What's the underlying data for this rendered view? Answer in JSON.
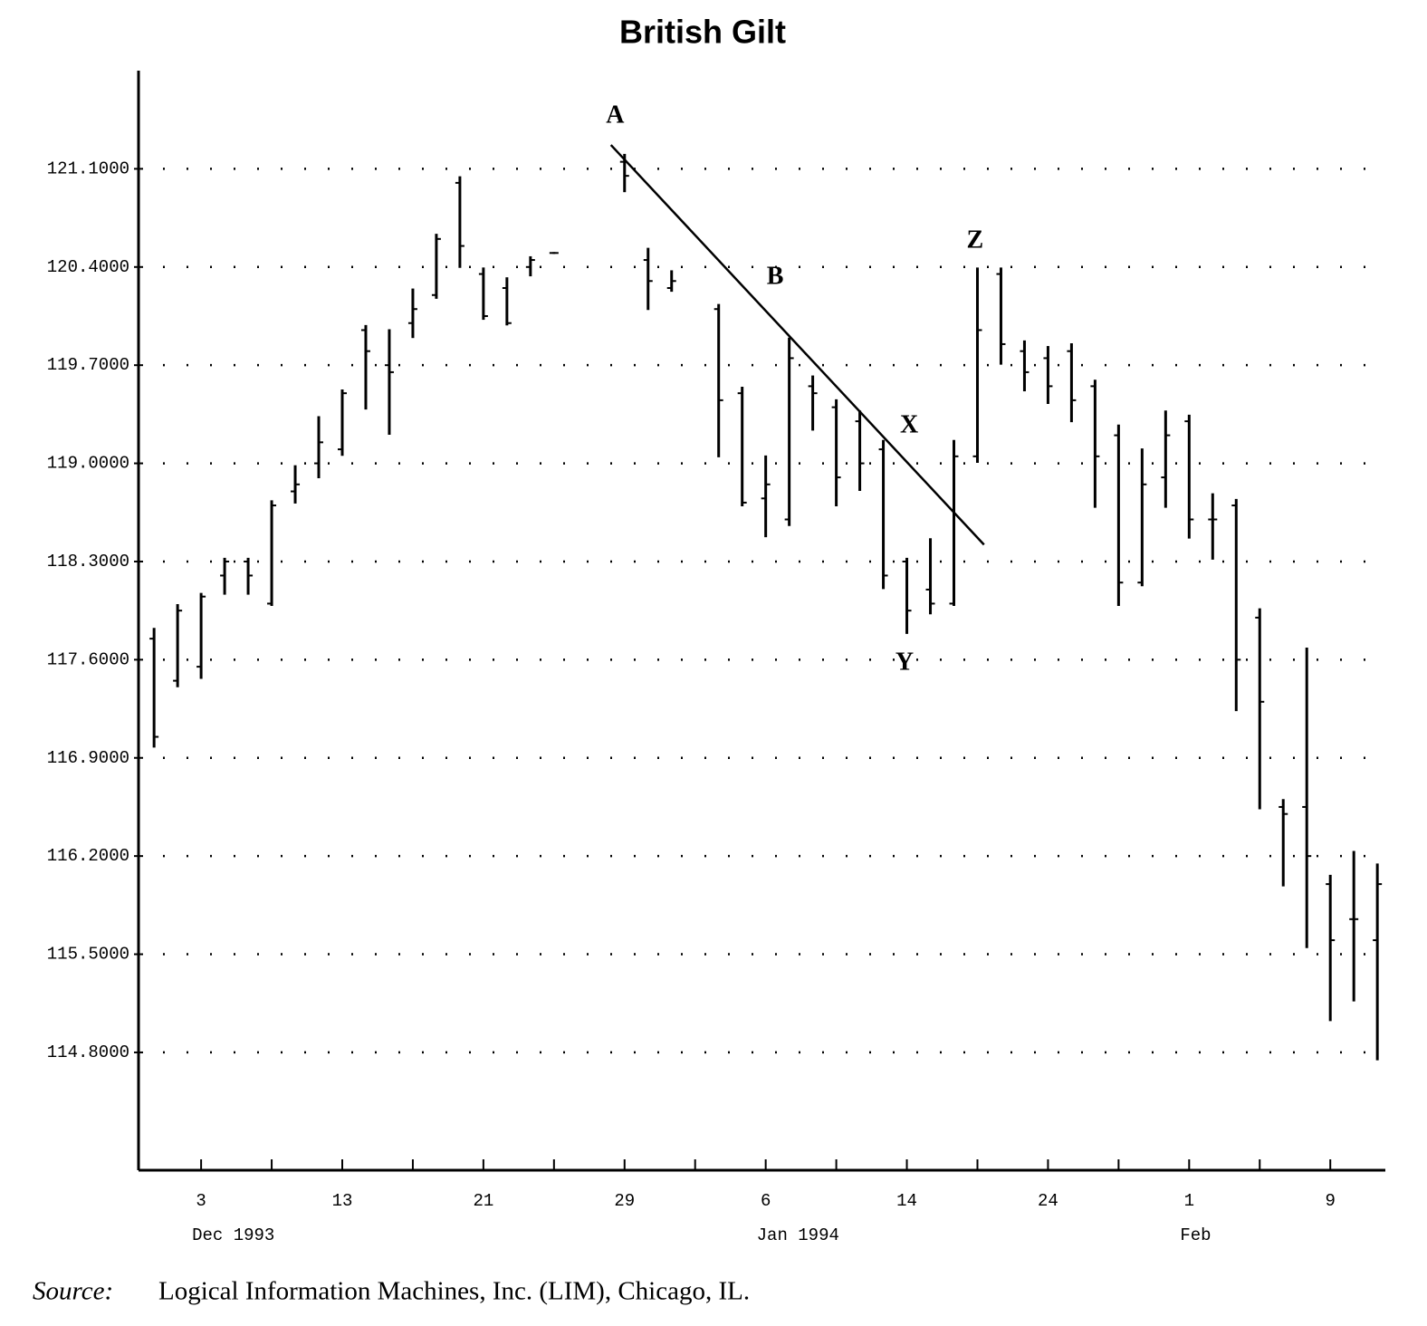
{
  "chart_data": {
    "type": "ohlc",
    "title": "British Gilt",
    "categories": [
      null,
      null,
      "3",
      null,
      null,
      null,
      null,
      null,
      "13",
      null,
      null,
      null,
      null,
      null,
      "21",
      null,
      null,
      null,
      null,
      null,
      "29",
      null,
      null,
      null,
      null,
      null,
      "6",
      null,
      null,
      null,
      null,
      null,
      "14",
      null,
      null,
      null,
      null,
      null,
      "24",
      null,
      null,
      null,
      null,
      null,
      "1",
      null,
      null,
      null,
      null,
      null,
      "9",
      null,
      null
    ],
    "x_groups": [
      {
        "label": "Dec 1993",
        "index": 2
      },
      {
        "label": "Jan 1994",
        "index": 26
      },
      {
        "label": "Feb",
        "index": 44
      }
    ],
    "open": [
      117.75,
      117.45,
      117.55,
      118.2,
      118.3,
      118.0,
      118.8,
      119.0,
      119.1,
      119.95,
      119.7,
      120.0,
      120.2,
      121.0,
      120.35,
      120.25,
      120.4,
      120.5,
      null,
      null,
      121.15,
      120.45,
      120.25,
      null,
      120.1,
      119.5,
      118.75,
      118.6,
      119.55,
      119.4,
      119.3,
      119.1,
      118.3,
      118.1,
      118.0,
      119.05,
      120.35,
      119.8,
      119.75,
      119.8,
      119.55,
      119.2,
      118.15,
      118.9,
      119.3,
      118.6,
      118.7,
      117.9,
      116.55,
      116.55,
      116.0,
      115.75,
      115.6
    ],
    "high": [
      117.82,
      117.99,
      118.07,
      118.32,
      118.32,
      118.73,
      118.98,
      119.33,
      119.52,
      119.98,
      119.95,
      120.24,
      120.63,
      121.04,
      120.39,
      120.32,
      120.47,
      120.5,
      null,
      null,
      121.2,
      120.53,
      120.37,
      null,
      120.13,
      119.54,
      119.05,
      119.89,
      119.62,
      119.45,
      119.37,
      119.16,
      118.32,
      118.46,
      119.16,
      120.39,
      120.39,
      119.87,
      119.83,
      119.85,
      119.59,
      119.27,
      119.1,
      119.37,
      119.34,
      118.78,
      118.74,
      117.96,
      116.6,
      117.68,
      116.06,
      116.23,
      116.14
    ],
    "low": [
      116.98,
      117.41,
      117.47,
      118.07,
      118.07,
      117.99,
      118.72,
      118.9,
      119.06,
      119.39,
      119.21,
      119.9,
      120.18,
      120.4,
      120.03,
      119.99,
      120.34,
      120.5,
      null,
      null,
      120.94,
      120.1,
      120.23,
      null,
      119.05,
      118.7,
      118.48,
      118.56,
      119.24,
      118.7,
      118.81,
      118.11,
      117.79,
      117.93,
      117.99,
      119.01,
      119.71,
      119.52,
      119.43,
      119.3,
      118.69,
      117.99,
      118.13,
      118.69,
      118.47,
      118.32,
      117.24,
      116.54,
      115.99,
      115.55,
      115.03,
      115.17,
      114.75
    ],
    "close": [
      117.05,
      117.95,
      118.05,
      118.3,
      118.2,
      118.7,
      118.85,
      119.15,
      119.5,
      119.8,
      119.65,
      120.1,
      120.6,
      120.55,
      120.05,
      120.0,
      120.45,
      120.5,
      null,
      null,
      121.05,
      120.3,
      120.3,
      null,
      119.45,
      118.72,
      118.85,
      119.75,
      119.5,
      118.9,
      119.0,
      118.2,
      117.95,
      118.0,
      119.05,
      119.95,
      119.85,
      119.65,
      119.55,
      119.45,
      119.05,
      118.15,
      118.85,
      119.2,
      118.6,
      118.6,
      117.6,
      117.3,
      116.5,
      116.2,
      115.6,
      115.75,
      116.0
    ],
    "color": "#000000",
    "ylim": [
      113.96,
      121.8
    ],
    "yticks": [
      {
        "value": 114.8,
        "label": "114.8000"
      },
      {
        "value": 115.5,
        "label": "115.5000"
      },
      {
        "value": 116.2,
        "label": "116.2000"
      },
      {
        "value": 116.9,
        "label": "116.9000"
      },
      {
        "value": 117.6,
        "label": "117.6000"
      },
      {
        "value": 118.3,
        "label": "118.3000"
      },
      {
        "value": 119.0,
        "label": "119.0000"
      },
      {
        "value": 119.7,
        "label": "119.7000"
      },
      {
        "value": 120.4,
        "label": "120.4000"
      },
      {
        "value": 121.1,
        "label": "121.1000"
      }
    ],
    "grid": true,
    "trendline": {
      "x": [
        19.42,
        35.28
      ],
      "y": [
        121.27,
        118.42
      ]
    },
    "annotations": [
      {
        "text": "A",
        "x": 19.6,
        "y": 121.47
      },
      {
        "text": "B",
        "x": 26.4,
        "y": 120.32
      },
      {
        "text": "X",
        "x": 32.1,
        "y": 119.26
      },
      {
        "text": "Y",
        "x": 31.9,
        "y": 117.57
      },
      {
        "text": "Z",
        "x": 34.9,
        "y": 120.58
      }
    ],
    "source_label": "Source:",
    "source": "Logical Information Machines, Inc. (LIM), Chicago, IL."
  }
}
